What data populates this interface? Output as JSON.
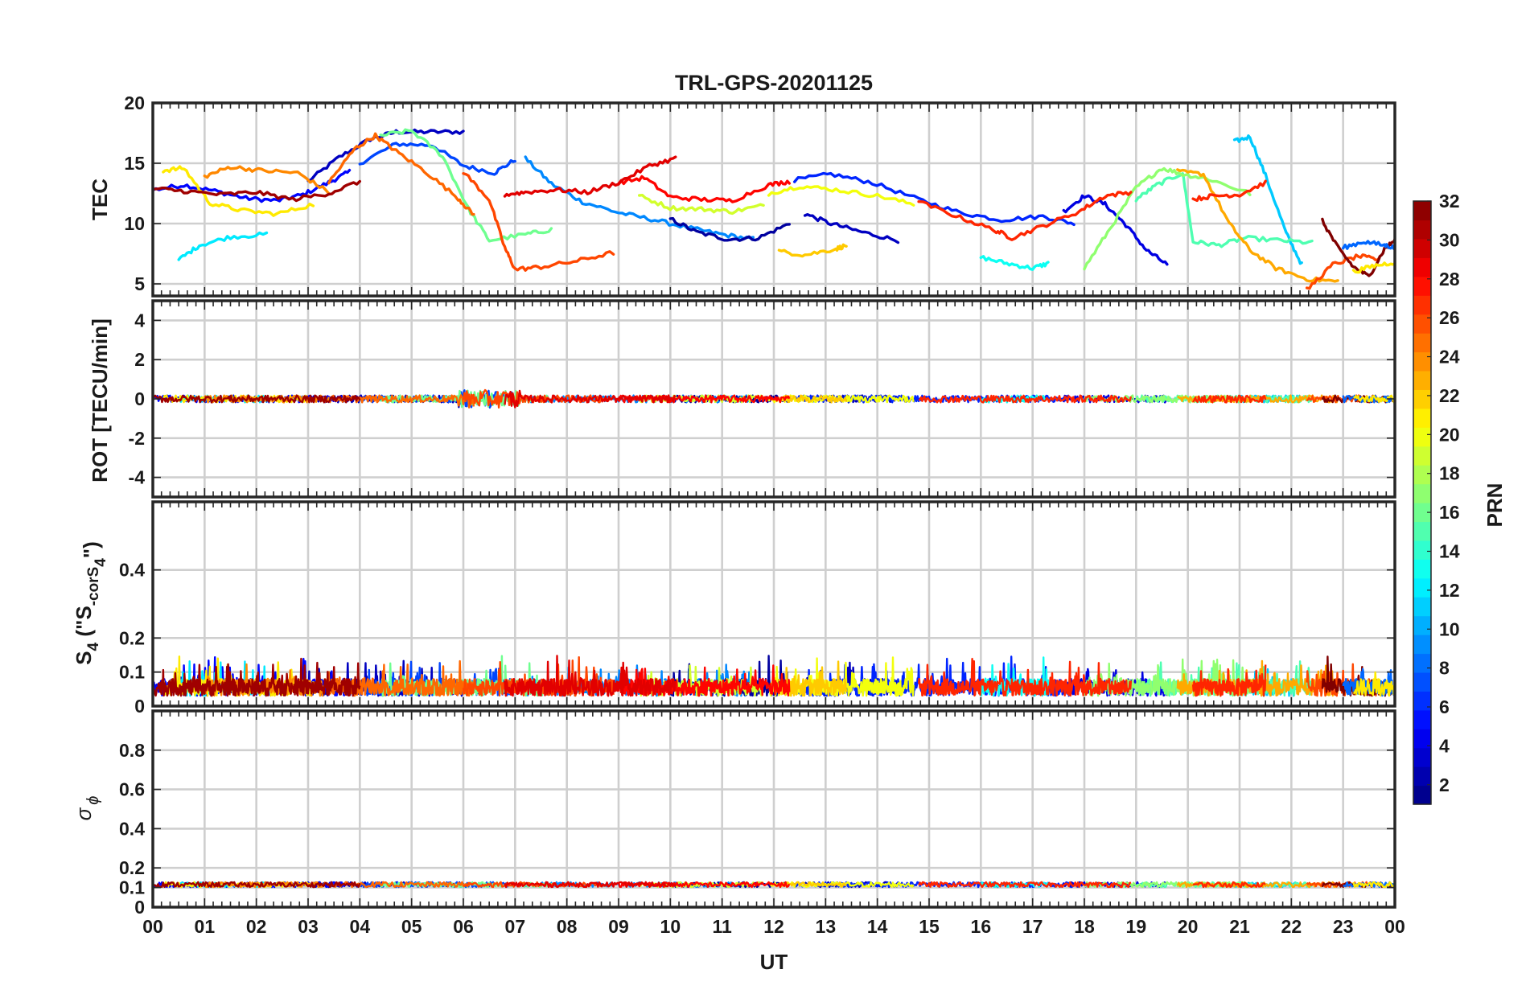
{
  "chart_data": {
    "type": "line",
    "title": "TRL-GPS-20201125",
    "xlabel": "UT",
    "x_ticks": [
      "00",
      "01",
      "02",
      "03",
      "04",
      "05",
      "06",
      "07",
      "08",
      "09",
      "10",
      "11",
      "12",
      "13",
      "14",
      "15",
      "16",
      "17",
      "18",
      "19",
      "20",
      "21",
      "22",
      "23",
      "00"
    ],
    "xlim": [
      0,
      24
    ],
    "grid": true,
    "panels": [
      {
        "id": "tec",
        "ylabel": "TEC",
        "ylim": [
          4,
          20
        ],
        "yticks": [
          5,
          10,
          15,
          20
        ],
        "series": [
          {
            "prn": 3,
            "x": [
              3.0,
              3.6,
              4.2,
              4.7,
              5.3,
              6.0
            ],
            "y": [
              13.5,
              15.5,
              17.0,
              17.6,
              17.6,
              17.6
            ]
          },
          {
            "prn": 5,
            "x": [
              0.0,
              0.6,
              1.2,
              1.8,
              2.4,
              2.9,
              3.4,
              3.8
            ],
            "y": [
              12.8,
              13.2,
              12.7,
              12.1,
              11.9,
              12.4,
              13.4,
              14.3
            ]
          },
          {
            "prn": 7,
            "x": [
              4.0,
              4.7,
              5.4,
              6.0,
              6.6,
              7.0
            ],
            "y": [
              15.0,
              16.6,
              16.5,
              14.8,
              14.2,
              15.3
            ]
          },
          {
            "prn": 9,
            "x": [
              7.2,
              7.7,
              8.3,
              9.0,
              9.7,
              10.4,
              11.0,
              11.6
            ],
            "y": [
              15.4,
              13.3,
              11.8,
              10.9,
              10.3,
              9.6,
              9.1,
              8.7
            ]
          },
          {
            "prn": 2,
            "x": [
              10.0,
              10.5,
              11.1,
              11.7,
              12.3
            ],
            "y": [
              10.4,
              9.3,
              8.7,
              8.8,
              10.0
            ]
          },
          {
            "prn": 3,
            "x": [
              12.6,
              13.1,
              13.7,
              14.4
            ],
            "y": [
              10.8,
              10.0,
              9.3,
              8.6
            ]
          },
          {
            "prn": 6,
            "x": [
              12.4,
              13.1,
              13.9,
              14.8,
              15.6,
              16.4,
              17.2,
              17.8
            ],
            "y": [
              13.6,
              14.1,
              13.4,
              12.0,
              10.9,
              10.3,
              10.6,
              10.0
            ]
          },
          {
            "prn": 4,
            "x": [
              17.6,
              18.0,
              18.4,
              18.8,
              19.2,
              19.6
            ],
            "y": [
              11.0,
              12.3,
              11.6,
              9.9,
              7.8,
              6.6
            ]
          },
          {
            "prn": 11,
            "x": [
              20.9,
              21.2,
              21.5,
              21.9,
              22.2
            ],
            "y": [
              16.8,
              17.2,
              14.0,
              9.2,
              6.6
            ]
          },
          {
            "prn": 12,
            "x": [
              0.5,
              0.9,
              1.5,
              2.2
            ],
            "y": [
              7.0,
              8.2,
              8.9,
              9.1
            ]
          },
          {
            "prn": 13,
            "x": [
              16.0,
              16.5,
              17.0,
              17.3
            ],
            "y": [
              7.2,
              6.7,
              6.3,
              6.7
            ]
          },
          {
            "prn": 15,
            "x": [
              19.0,
              19.4,
              19.9,
              20.1,
              20.6,
              21.1,
              21.8,
              22.4
            ],
            "y": [
              12.0,
              13.2,
              14.2,
              8.5,
              8.2,
              8.8,
              8.6,
              8.4
            ]
          },
          {
            "prn": 16,
            "x": [
              4.4,
              5.0,
              5.6,
              6.1,
              6.5,
              7.2,
              7.7
            ],
            "y": [
              17.3,
              17.7,
              15.6,
              11.2,
              8.6,
              9.1,
              9.5
            ]
          },
          {
            "prn": 17,
            "x": [
              18.0,
              18.5,
              19.0,
              19.5,
              19.9,
              20.4,
              21.2
            ],
            "y": [
              6.3,
              9.6,
              13.0,
              14.6,
              14.1,
              13.7,
              12.5
            ]
          },
          {
            "prn": 19,
            "x": [
              9.4,
              10.0,
              10.6,
              11.2,
              11.8
            ],
            "y": [
              12.3,
              11.3,
              11.2,
              11.0,
              11.5
            ]
          },
          {
            "prn": 20,
            "x": [
              11.9,
              12.5,
              13.2,
              14.0,
              14.7
            ],
            "y": [
              12.5,
              13.1,
              12.8,
              12.3,
              11.6
            ]
          },
          {
            "prn": 21,
            "x": [
              0.2,
              0.6,
              1.1,
              1.7,
              2.4,
              3.1
            ],
            "y": [
              14.4,
              14.6,
              11.7,
              11.1,
              10.8,
              11.6
            ]
          },
          {
            "prn": 22,
            "x": [
              12.1,
              12.6,
              13.2,
              13.4
            ],
            "y": [
              7.7,
              7.4,
              7.9,
              8.2
            ]
          },
          {
            "prn": 23,
            "x": [
              19.8,
              20.3,
              20.8,
              21.2,
              21.7,
              22.3,
              22.9
            ],
            "y": [
              14.3,
              14.1,
              10.0,
              7.8,
              6.3,
              5.4,
              5.2
            ]
          },
          {
            "prn": 24,
            "x": [
              1.0,
              1.5,
              2.1,
              2.8,
              3.4
            ],
            "y": [
              13.9,
              14.7,
              14.4,
              14.2,
              12.6
            ]
          },
          {
            "prn": 25,
            "x": [
              3.4,
              3.9,
              4.3,
              4.7,
              5.3,
              5.9,
              6.2
            ],
            "y": [
              13.4,
              16.2,
              17.3,
              16.0,
              14.2,
              12.1,
              10.7
            ]
          },
          {
            "prn": 26,
            "x": [
              6.0,
              6.5,
              6.8,
              7.0,
              7.5,
              8.2,
              8.9
            ],
            "y": [
              14.3,
              12.0,
              8.0,
              6.2,
              6.4,
              6.9,
              7.6
            ]
          },
          {
            "prn": 27,
            "x": [
              14.8,
              15.6,
              16.3,
              16.6,
              17.2,
              17.9,
              18.4,
              18.9
            ],
            "y": [
              11.8,
              10.5,
              9.4,
              8.8,
              9.8,
              11.0,
              12.3,
              12.6
            ]
          },
          {
            "prn": 28,
            "x": [
              9.0,
              9.5,
              10.0,
              10.6,
              11.2,
              11.9,
              12.3
            ],
            "y": [
              13.4,
              13.8,
              12.2,
              12.0,
              11.9,
              13.2,
              13.5
            ]
          },
          {
            "prn": 27,
            "x": [
              20.1,
              20.5,
              21.0,
              21.5
            ],
            "y": [
              12.0,
              12.3,
              12.4,
              13.4
            ]
          },
          {
            "prn": 26,
            "x": [
              22.3,
              22.8,
              23.3,
              23.7
            ],
            "y": [
              4.5,
              6.6,
              7.3,
              7.0
            ]
          },
          {
            "prn": 29,
            "x": [
              6.8,
              7.2,
              7.8,
              8.4,
              9.0,
              9.6,
              10.1
            ],
            "y": [
              12.4,
              12.6,
              12.8,
              12.6,
              13.4,
              14.8,
              15.4
            ]
          },
          {
            "prn": 31,
            "x": [
              0.0,
              0.6,
              1.3,
              2.0,
              2.7,
              3.4,
              4.0
            ],
            "y": [
              12.9,
              12.7,
              12.4,
              12.6,
              12.0,
              12.5,
              13.5
            ]
          },
          {
            "prn": 32,
            "x": [
              22.6,
              22.9,
              23.2,
              23.5,
              23.8,
              24.0
            ],
            "y": [
              10.2,
              8.0,
              6.4,
              5.6,
              7.9,
              8.6
            ]
          },
          {
            "prn": 8,
            "x": [
              23.0,
              23.4,
              23.8,
              24.0
            ],
            "y": [
              8.0,
              8.5,
              8.2,
              8.0
            ]
          },
          {
            "prn": 21,
            "x": [
              23.2,
              23.6,
              24.0
            ],
            "y": [
              6.0,
              6.5,
              6.8
            ]
          }
        ]
      },
      {
        "id": "rot",
        "ylabel": "ROT [TECU/min]",
        "ylim": [
          -5,
          5
        ],
        "yticks": [
          -4,
          -2,
          0,
          2,
          4
        ],
        "series_note": "dense near zero, all PRNs"
      },
      {
        "id": "s4",
        "ylabel": "S₄ (\"S₄-corS₄\")",
        "ylabel_main": "S",
        "ylabel_sub": "4",
        "ylabel_paren": " (\"S",
        "ylabel_sub2": "-corS",
        "ylabel_sub3": "4",
        "ylabel_end": "\")",
        "ylim": [
          0,
          0.6
        ],
        "yticks": [
          0,
          0.1,
          0.2,
          0.4
        ],
        "ytick_labels": [
          "0",
          "0.1",
          "0.2",
          "0.4"
        ]
      },
      {
        "id": "sigma",
        "ylabel": "σ ϕ",
        "ylabel_main": "σ",
        "ylabel_sub": "ϕ",
        "ylim": [
          0,
          1
        ],
        "yticks": [
          0,
          0.1,
          0.2,
          0.4,
          0.6,
          0.8
        ],
        "ytick_labels": [
          "0",
          "0.1",
          "0.2",
          "0.4",
          "0.6",
          "0.8"
        ]
      }
    ],
    "colorbar": {
      "label": "PRN",
      "range": [
        1,
        32
      ],
      "ticks": [
        2,
        4,
        6,
        8,
        10,
        12,
        14,
        16,
        18,
        20,
        22,
        24,
        26,
        28,
        30,
        32
      ],
      "colormap": "jet"
    }
  }
}
